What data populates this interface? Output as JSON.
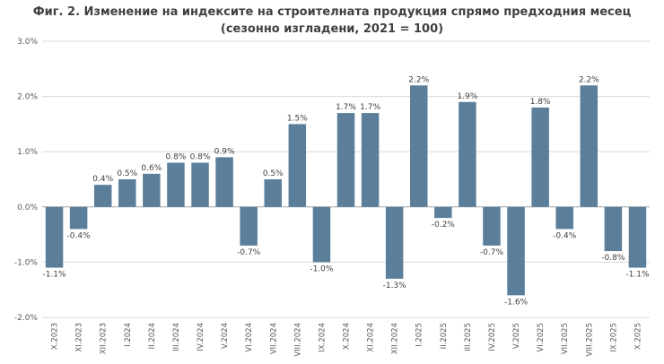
{
  "chart_data": {
    "type": "bar",
    "title": "Фиг. 2. Изменение на индексите на строителната продукция спрямо предходния месец",
    "subtitle": "(сезонно изгладени, 2021 = 100)",
    "xlabel": "",
    "ylabel": "",
    "ylim": [
      -2.0,
      3.0
    ],
    "yticks": [
      -2.0,
      -1.0,
      0.0,
      1.0,
      2.0,
      3.0
    ],
    "ytick_labels": [
      "-2.0%",
      "-1.0%",
      "0.0%",
      "1.0%",
      "2.0%",
      "3.0%"
    ],
    "grid": true,
    "bar_color": "#5b7f9b",
    "categories": [
      "X.2023",
      "XI.2023",
      "XII.2023",
      "I.2024",
      "II.2024",
      "III.2024",
      "IV.2024",
      "V.2024",
      "VI.2024",
      "VII.2024",
      "VIII.2024",
      "IX.2024",
      "X.2024",
      "XI.2024",
      "XII.2024",
      "I.2025",
      "II.2025",
      "III.2025",
      "IV.2025",
      "V.2025",
      "VI.2025",
      "VII.2025",
      "VIII.2025",
      "IX.2025",
      "X.2025"
    ],
    "values": [
      -1.1,
      -0.4,
      0.4,
      0.5,
      0.6,
      0.8,
      0.8,
      0.9,
      -0.7,
      0.5,
      1.5,
      -1.0,
      1.7,
      1.7,
      -1.3,
      2.2,
      -0.2,
      1.9,
      -0.7,
      -1.6,
      1.8,
      -0.4,
      2.2,
      -0.8,
      -1.1
    ],
    "value_labels": [
      "-1.1%",
      "-0.4%",
      "0.4%",
      "0.5%",
      "0.6%",
      "0.8%",
      "0.8%",
      "0.9%",
      "-0.7%",
      "0.5%",
      "1.5%",
      "-1.0%",
      "1.7%",
      "1.7%",
      "-1.3%",
      "2.2%",
      "-0.2%",
      "1.9%",
      "-0.7%",
      "-1.6%",
      "1.8%",
      "-0.4%",
      "2.2%",
      "-0.8%",
      "-1.1%"
    ]
  }
}
